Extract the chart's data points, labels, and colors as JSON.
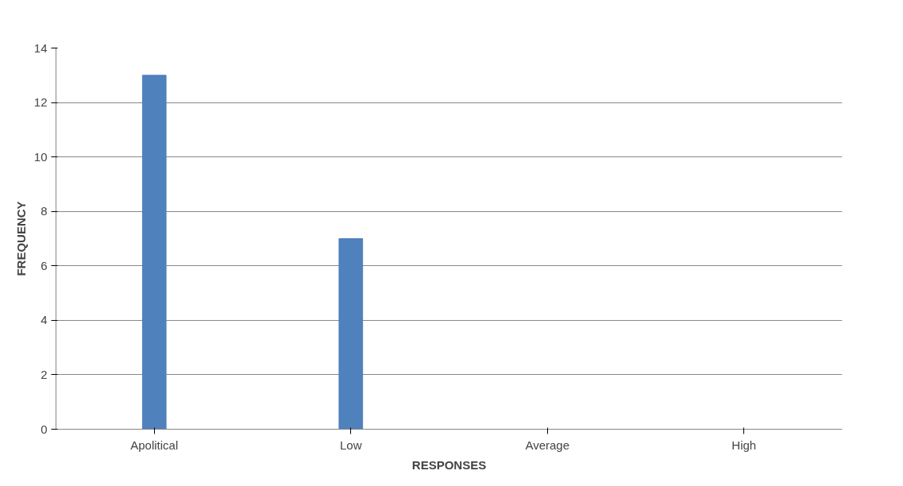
{
  "chart_data": {
    "type": "bar",
    "xlabel": "RESPONSES",
    "ylabel": "FREQUENCY",
    "categories": [
      "Apolitical",
      "Low",
      "Average",
      "High"
    ],
    "values": [
      13,
      7,
      0,
      0
    ],
    "color": "#4f81bd",
    "ylim": [
      0,
      14
    ],
    "yticks": [
      0,
      2,
      4,
      6,
      8,
      10,
      12,
      14
    ],
    "grid": "y"
  }
}
